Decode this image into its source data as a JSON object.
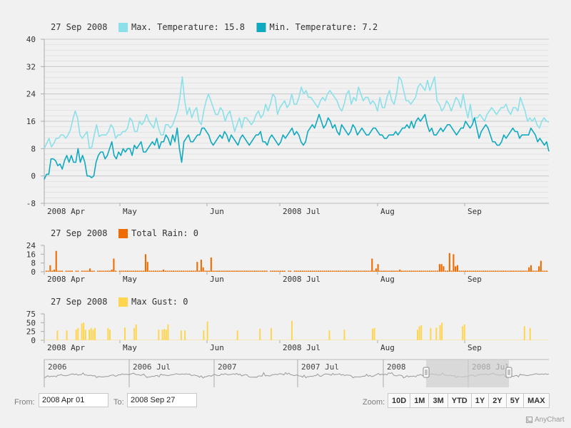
{
  "chart_data": [
    {
      "type": "line",
      "legend_date": "27 Sep 2008",
      "ylim": [
        -8,
        40
      ],
      "y_ticks": [
        -8,
        0,
        8,
        16,
        24,
        32,
        40
      ],
      "x_labels": [
        "2008 Apr",
        "May",
        "Jun",
        "2008 Jul",
        "Aug",
        "Sep"
      ],
      "series": [
        {
          "name": "Max. Temperature",
          "legend_value": "15.8",
          "color": "#8be0ea",
          "values": [
            8,
            9.5,
            11,
            8.5,
            9.5,
            11,
            11,
            12,
            12,
            11,
            12,
            13.5,
            16.5,
            19,
            17,
            12,
            11,
            12,
            13,
            8,
            8.5,
            12,
            15,
            11.5,
            12,
            12,
            12,
            13,
            15,
            14,
            11,
            12,
            12,
            13,
            13,
            14,
            17,
            16,
            13,
            13,
            16,
            15,
            16,
            18,
            16,
            15,
            14,
            17,
            14,
            12,
            12,
            15,
            15,
            14,
            15,
            17,
            19,
            23,
            29,
            22,
            18,
            20,
            17,
            19,
            20,
            16,
            15,
            19,
            22,
            24,
            22,
            20,
            18,
            18,
            20,
            19,
            16,
            18,
            19,
            16,
            13,
            15,
            17,
            14,
            17,
            17,
            16,
            15,
            16,
            18,
            19,
            17,
            18,
            21,
            19,
            21,
            24,
            23,
            18,
            20,
            21,
            22,
            20,
            21,
            24,
            21,
            21,
            23,
            26,
            24,
            25,
            23,
            23,
            22,
            21,
            20,
            22,
            23,
            22,
            24,
            25,
            24,
            23,
            22,
            20,
            19,
            21,
            24,
            25,
            21,
            23,
            22,
            26,
            24,
            22,
            23,
            23,
            21,
            22,
            21,
            19,
            23,
            20,
            20,
            23,
            25,
            22,
            21,
            24,
            29,
            28,
            25,
            22,
            22,
            21,
            22,
            23,
            26,
            27,
            26,
            25,
            28,
            25,
            27,
            29,
            22,
            21,
            19,
            20,
            22,
            21,
            19,
            21,
            23,
            22,
            20,
            24,
            20,
            17,
            21,
            16,
            17,
            17,
            18,
            17,
            16,
            18,
            19,
            20,
            19,
            18,
            19,
            20,
            20,
            21,
            19,
            18,
            20,
            20,
            19,
            23,
            21,
            19,
            16,
            17,
            16,
            17,
            15,
            14,
            16,
            17,
            16,
            15.8
          ]
        },
        {
          "name": "Min. Temperature",
          "legend_value": "7.2",
          "color": "#0fa9c0",
          "values": [
            -1,
            0.5,
            0.5,
            5,
            5,
            4.5,
            3,
            3.5,
            2,
            4.5,
            6,
            4,
            6,
            4,
            4,
            8,
            4,
            6,
            4,
            0,
            0,
            -0.5,
            0,
            4,
            6,
            7,
            7,
            5,
            6,
            8,
            10,
            6,
            5,
            7,
            6,
            8,
            7,
            8,
            8,
            6,
            9,
            8,
            9,
            10,
            7,
            7,
            8,
            9,
            10,
            9,
            11,
            8,
            10,
            10,
            12,
            11,
            9,
            12,
            10,
            14,
            8,
            4,
            10,
            11,
            12,
            10,
            10,
            11,
            12,
            12,
            14,
            14,
            13,
            12,
            10,
            9,
            10,
            11,
            12,
            11,
            13,
            12,
            10,
            12,
            11,
            10,
            9,
            11,
            12,
            11,
            10,
            9,
            10,
            11,
            12,
            12,
            13,
            10,
            10,
            9,
            11,
            12,
            11,
            10,
            9,
            10,
            12,
            11,
            12,
            13,
            14,
            12,
            13,
            12,
            10,
            9,
            10,
            13,
            14,
            15,
            14,
            16,
            18,
            16,
            14,
            15,
            17,
            16,
            14,
            15,
            13,
            12,
            15,
            14,
            13,
            12,
            13,
            15,
            14,
            12,
            13,
            14,
            13,
            12,
            12,
            13,
            14,
            14,
            13,
            12,
            12,
            11,
            11,
            12,
            12,
            12,
            13,
            12,
            13,
            14,
            14,
            15,
            14,
            16,
            14,
            16,
            17,
            16,
            17,
            18,
            15,
            13,
            14,
            12,
            12,
            13,
            14,
            13,
            14,
            15,
            15,
            14,
            13,
            12,
            13,
            14,
            14,
            16,
            15,
            14,
            15,
            17,
            14,
            11,
            13,
            14,
            15,
            14,
            12,
            10,
            10,
            9,
            9,
            10,
            12,
            11,
            12,
            13,
            14,
            13,
            13,
            11,
            12,
            12,
            12,
            12,
            14,
            13,
            12,
            10,
            11,
            10,
            9,
            10,
            7.2
          ]
        }
      ]
    },
    {
      "type": "bar",
      "legend_date": "27 Sep 2008",
      "ylim": [
        0,
        24
      ],
      "y_ticks": [
        0,
        8,
        16,
        24
      ],
      "x_labels": [
        "2008 Apr",
        "May",
        "Jun",
        "2008 Jul",
        "Aug",
        "Sep"
      ],
      "series": [
        {
          "name": "Total Rain",
          "legend_value": "0",
          "color": "#ef6c00",
          "values": [
            0,
            1,
            1,
            6,
            1,
            2,
            19,
            1,
            1,
            1,
            0,
            1,
            1,
            1,
            1,
            0,
            1,
            1,
            0,
            1,
            1,
            1,
            1,
            3,
            1,
            1,
            0,
            1,
            1,
            1,
            1,
            1,
            1,
            1,
            2,
            12,
            1,
            0,
            1,
            1,
            1,
            1,
            1,
            1,
            1,
            1,
            1,
            1,
            1,
            1,
            1,
            16,
            9,
            1,
            1,
            1,
            1,
            1,
            1,
            1,
            2,
            1,
            1,
            1,
            1,
            1,
            1,
            1,
            1,
            1,
            1,
            1,
            1,
            1,
            1,
            1,
            1,
            9,
            1,
            11,
            4,
            1,
            1,
            1,
            13,
            1,
            1,
            1,
            1,
            1,
            1,
            1,
            1,
            1,
            1,
            1,
            1,
            1,
            1,
            1,
            1,
            1,
            1,
            1,
            1,
            1,
            1,
            1,
            1,
            1,
            1,
            1,
            1,
            0,
            1,
            1,
            1,
            1,
            1,
            1,
            1,
            1,
            0,
            1,
            1,
            0,
            1,
            1,
            1,
            1,
            1,
            1,
            1,
            1,
            1,
            1,
            1,
            1,
            1,
            1,
            1,
            1,
            1,
            1,
            1,
            1,
            1,
            1,
            1,
            1,
            1,
            1,
            1,
            1,
            1,
            1,
            1,
            1,
            1,
            1,
            1,
            1,
            1,
            1,
            1,
            12,
            1,
            3,
            7,
            1,
            1,
            1,
            1,
            1,
            1,
            1,
            1,
            1,
            1,
            2,
            1,
            1,
            1,
            1,
            1,
            1,
            1,
            1,
            1,
            1,
            1,
            1,
            1,
            1,
            1,
            1,
            1,
            1,
            1,
            7,
            7,
            5,
            1,
            1,
            17,
            1,
            16,
            5,
            6,
            1,
            1,
            1,
            1,
            1,
            1,
            1,
            1,
            1,
            1,
            1,
            1,
            1,
            1,
            1,
            1,
            1,
            1,
            1,
            1,
            1,
            1,
            1,
            1,
            1,
            1,
            1,
            1,
            1,
            1,
            1,
            1,
            1,
            1,
            1,
            4,
            6,
            1,
            1,
            1,
            5,
            10,
            1,
            1,
            1,
            0
          ]
        }
      ]
    },
    {
      "type": "bar",
      "legend_date": "27 Sep 2008",
      "ylim": [
        0,
        75
      ],
      "y_ticks": [
        0,
        25,
        50,
        75
      ],
      "x_labels": [
        "2008 Apr",
        "May",
        "Jun",
        "2008 Jul",
        "Aug",
        "Sep"
      ],
      "series": [
        {
          "name": "Max Gust",
          "legend_value": "0",
          "color": "#ffd54f",
          "values": [
            1,
            1,
            1,
            1,
            1,
            1,
            1,
            28,
            1,
            1,
            1,
            1,
            28,
            1,
            1,
            1,
            1,
            30,
            35,
            1,
            48,
            50,
            30,
            1,
            30,
            35,
            30,
            35,
            1,
            1,
            1,
            1,
            1,
            1,
            35,
            30,
            1,
            1,
            1,
            1,
            1,
            1,
            1,
            36,
            1,
            1,
            1,
            1,
            35,
            45,
            1,
            1,
            1,
            1,
            1,
            1,
            1,
            1,
            1,
            1,
            1,
            30,
            1,
            30,
            32,
            30,
            45,
            1,
            1,
            1,
            1,
            1,
            1,
            28,
            1,
            28,
            1,
            1,
            1,
            1,
            1,
            1,
            1,
            1,
            1,
            28,
            1,
            53,
            1,
            1,
            1,
            1,
            1,
            1,
            1,
            1,
            1,
            1,
            1,
            1,
            1,
            1,
            1,
            28,
            1,
            1,
            1,
            1,
            1,
            1,
            1,
            1,
            1,
            1,
            1,
            33,
            1,
            1,
            1,
            1,
            1,
            35,
            1,
            1,
            1,
            1,
            1,
            1,
            1,
            1,
            1,
            1,
            55,
            1,
            1,
            1,
            1,
            1,
            1,
            1,
            1,
            1,
            1,
            1,
            1,
            1,
            1,
            1,
            1,
            1,
            1,
            1,
            28,
            1,
            1,
            1,
            1,
            1,
            1,
            1,
            30,
            1,
            1,
            1,
            1,
            1,
            1,
            1,
            1,
            1,
            1,
            1,
            1,
            1,
            1,
            33,
            35,
            1,
            1,
            1,
            1,
            1,
            1,
            1,
            1,
            1,
            1,
            1,
            1,
            1,
            1,
            1,
            1,
            1,
            1,
            1,
            1,
            1,
            1,
            30,
            40,
            43,
            1,
            1,
            1,
            1,
            35,
            1,
            1,
            36,
            1,
            43,
            50,
            1,
            1,
            1,
            1,
            1,
            1,
            1,
            1,
            1,
            1,
            40,
            45,
            1,
            1,
            1,
            1,
            1,
            1,
            1,
            1,
            1,
            1,
            1,
            1,
            1,
            1,
            1,
            1,
            1,
            1,
            1,
            1,
            1,
            1,
            1,
            1,
            1,
            1,
            1,
            1,
            1,
            1,
            1,
            40,
            1,
            1,
            35,
            1,
            1,
            1,
            1,
            1,
            1,
            1,
            1,
            1,
            0
          ]
        }
      ]
    }
  ],
  "scroller": {
    "labels": [
      "2006",
      "2006 Jul",
      "2007",
      "2007 Jul",
      "2008",
      "2008 Jul"
    ]
  },
  "range": {
    "from_label": "From:",
    "from_value": "2008 Apr 01",
    "to_label": "To:",
    "to_value": "2008 Sep 27"
  },
  "zoom": {
    "label": "Zoom:",
    "buttons": [
      "10D",
      "1M",
      "3M",
      "YTD",
      "1Y",
      "2Y",
      "5Y",
      "MAX"
    ]
  },
  "credits": "AnyChart"
}
